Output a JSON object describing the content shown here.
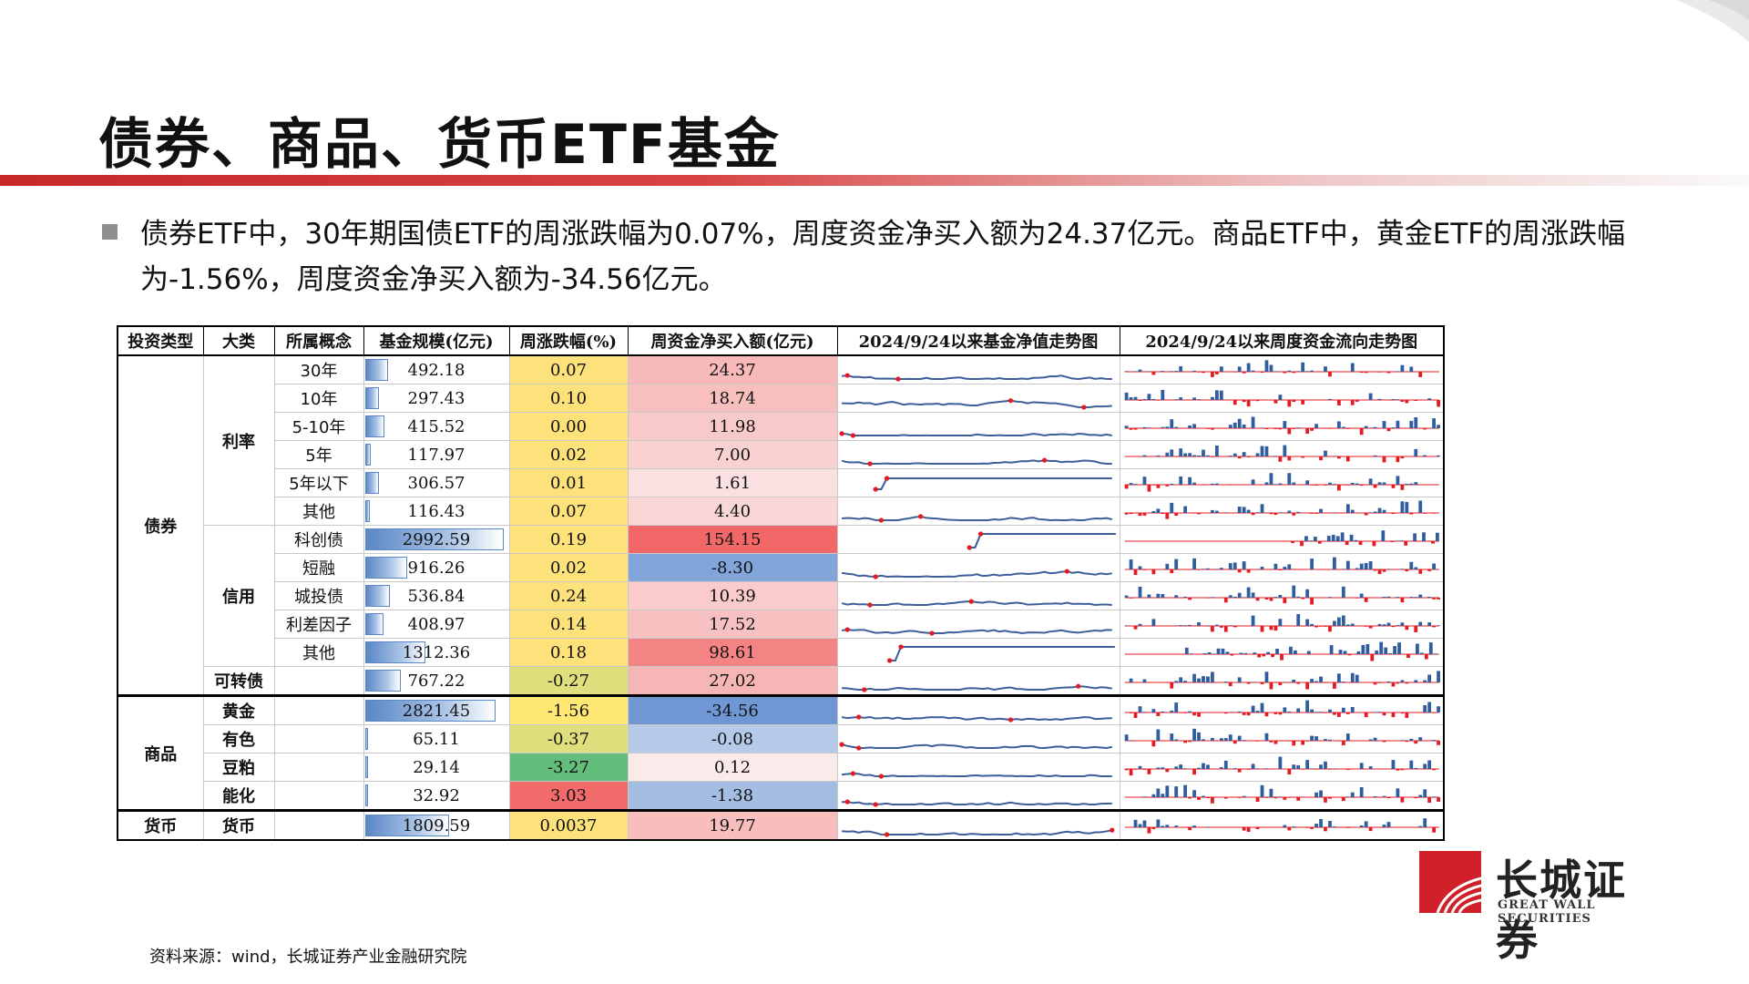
{
  "slide": {
    "title": "债券、商品、货币ETF基金",
    "intro": "债券ETF中，30年期国债ETF的周涨跌幅为0.07%，周度资金净买入额为24.37亿元。商品ETF中，黄金ETF的周涨跌幅为-1.56%，周度资金净买入额为-34.56亿元。",
    "source": "资料来源：wind，长城证券产业金融研究院"
  },
  "logo": {
    "cn": "长城证券",
    "en": "GREAT WALL SECURITIES"
  },
  "colors": {
    "accent": "#c62828",
    "bar": "#5b87c5",
    "up": "#e31b23",
    "down": "#2f5d9e"
  },
  "table": {
    "headers": [
      "投资类型",
      "大类",
      "所属概念",
      "基金规模(亿元)",
      "周涨跌幅(%)",
      "周资金净买入额(亿元)",
      "2024/9/24以来基金净值走势图",
      "2024/9/24以来周度资金流向走势图"
    ],
    "groups": {
      "bond": "债券",
      "commodity": "商品",
      "money": "货币"
    },
    "cats": {
      "rate": "利率",
      "credit": "信用",
      "convertible": "可转债"
    },
    "rows": [
      {
        "concept": "30年",
        "scale": "492.18",
        "change": "0.07",
        "flow": "24.37"
      },
      {
        "concept": "10年",
        "scale": "297.43",
        "change": "0.10",
        "flow": "18.74"
      },
      {
        "concept": "5-10年",
        "scale": "415.52",
        "change": "0.00",
        "flow": "11.98"
      },
      {
        "concept": "5年",
        "scale": "117.97",
        "change": "0.02",
        "flow": "7.00"
      },
      {
        "concept": "5年以下",
        "scale": "306.57",
        "change": "0.01",
        "flow": "1.61"
      },
      {
        "concept": "其他",
        "scale": "116.43",
        "change": "0.07",
        "flow": "4.40"
      },
      {
        "concept": "科创债",
        "scale": "2992.59",
        "change": "0.19",
        "flow": "154.15"
      },
      {
        "concept": "短融",
        "scale": "916.26",
        "change": "0.02",
        "flow": "-8.30"
      },
      {
        "concept": "城投债",
        "scale": "536.84",
        "change": "0.24",
        "flow": "10.39"
      },
      {
        "concept": "利差因子",
        "scale": "408.97",
        "change": "0.14",
        "flow": "17.52"
      },
      {
        "concept": "其他",
        "scale": "1312.36",
        "change": "0.18",
        "flow": "98.61"
      },
      {
        "concept": "",
        "scale": "767.22",
        "change": "-0.27",
        "flow": "27.02"
      },
      {
        "cat": "黄金",
        "concept": "",
        "scale": "2821.45",
        "change": "-1.56",
        "flow": "-34.56"
      },
      {
        "cat": "有色",
        "concept": "",
        "scale": "65.11",
        "change": "-0.37",
        "flow": "-0.08"
      },
      {
        "cat": "豆粕",
        "concept": "",
        "scale": "29.14",
        "change": "-3.27",
        "flow": "0.12"
      },
      {
        "cat": "能化",
        "concept": "",
        "scale": "32.92",
        "change": "3.03",
        "flow": "-1.38"
      },
      {
        "cat": "货币",
        "concept": "",
        "scale": "1809.59",
        "change": "0.0037",
        "flow": "19.77"
      }
    ]
  }
}
